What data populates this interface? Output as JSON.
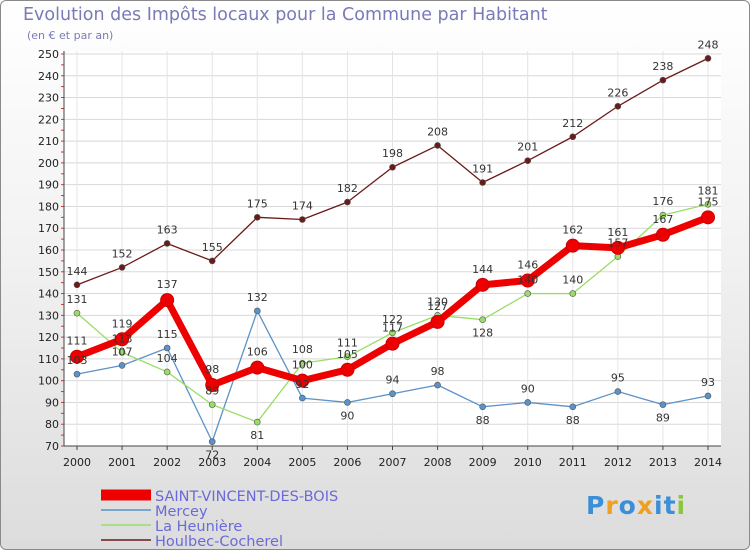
{
  "chart_data": {
    "type": "line",
    "title": "Evolution des Impôts locaux pour la Commune par Habitant",
    "subtitle": "(en € et par an)",
    "xlabel": "",
    "ylabel": "",
    "ylim": [
      70,
      250
    ],
    "yticks": [
      70,
      80,
      90,
      100,
      110,
      120,
      130,
      140,
      150,
      160,
      170,
      180,
      190,
      200,
      210,
      220,
      230,
      240,
      250
    ],
    "categories": [
      "2000",
      "2001",
      "2002",
      "2003",
      "2004",
      "2005",
      "2006",
      "2007",
      "2008",
      "2009",
      "2010",
      "2011",
      "2012",
      "2013",
      "2014"
    ],
    "series": [
      {
        "name": "Houlbec-Cocherel",
        "color": "#6b1a1a",
        "values": [
          144,
          152,
          163,
          155,
          175,
          174,
          182,
          198,
          208,
          191,
          201,
          212,
          226,
          238,
          248
        ]
      },
      {
        "name": "Mercey",
        "color": "#5b92c8",
        "values": [
          103,
          107,
          115,
          72,
          132,
          92,
          90,
          94,
          98,
          88,
          90,
          88,
          95,
          89,
          93
        ]
      },
      {
        "name": "La Heunière",
        "color": "#99dd66",
        "values": [
          131,
          113,
          104,
          89,
          81,
          108,
          111,
          122,
          130,
          128,
          140,
          140,
          157,
          176,
          181
        ]
      },
      {
        "name": "SAINT-VINCENT-DES-BOIS",
        "color": "#ee0000",
        "values": [
          111,
          119,
          137,
          98,
          106,
          100,
          105,
          117,
          127,
          144,
          146,
          162,
          161,
          167,
          175
        ]
      }
    ],
    "labels": [
      {
        "name": "Houlbec-Cocherel",
        "texts": [
          "144",
          "152",
          "163",
          "155",
          "175",
          "174",
          "182",
          "198",
          "208",
          "191",
          "201",
          "212",
          "226",
          "238",
          "248"
        ]
      },
      {
        "name": "Mercey",
        "texts": [
          "103",
          "107",
          "115",
          "72",
          "132",
          "92",
          "90",
          "94",
          "98",
          "88",
          "90",
          "88",
          "95",
          "89",
          "93"
        ]
      },
      {
        "name": "La Heunière",
        "texts": [
          "131",
          "113",
          "104",
          "89",
          "81",
          "108",
          "111",
          "122",
          "130",
          "128",
          "140",
          "140",
          "157",
          "176",
          "181"
        ]
      },
      {
        "name": "SAINT-VINCENT-DES-BOIS",
        "texts": [
          "111",
          "119",
          "137",
          "98",
          "106",
          "100",
          "105",
          "117",
          "127",
          "144",
          "146",
          "162",
          "161",
          "167",
          "175"
        ]
      }
    ],
    "legend": {
      "placement": "bottom-left",
      "items": [
        "SAINT-VINCENT-DES-BOIS",
        "Mercey",
        "La Heunière",
        "Houlbec-Cocherel"
      ]
    }
  },
  "logo": {
    "text": "Proxiti",
    "letters": [
      "P",
      "r",
      "o",
      "x",
      "i",
      "t",
      "i"
    ],
    "colors": [
      "#3a8fd8",
      "#f0a020",
      "#3a8fd8",
      "#f0a020",
      "#3a8fd8",
      "#3a8fd8",
      "#8cc63f"
    ]
  }
}
